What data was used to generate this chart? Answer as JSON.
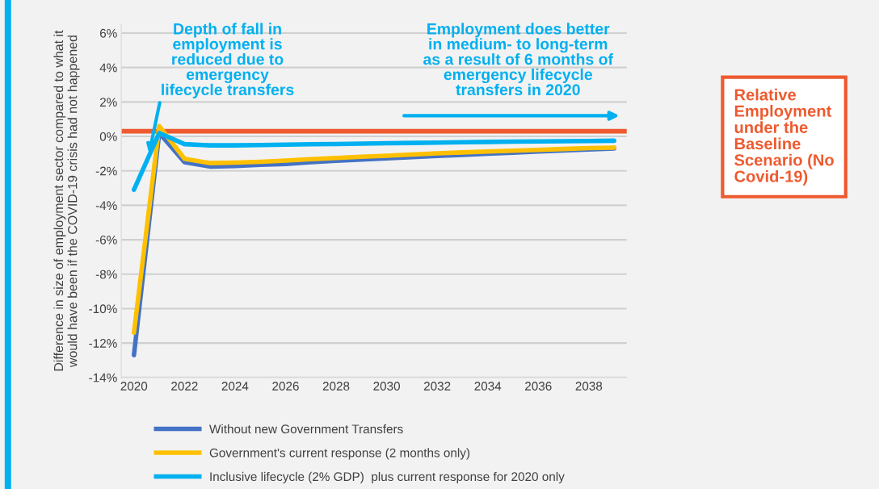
{
  "chart_data": {
    "type": "line",
    "ylabel": "Difference in size of employment sector compared to what it\nwould have been if the COVID-19 crisis had not happened",
    "x": [
      2020,
      2021,
      2022,
      2023,
      2024,
      2025,
      2026,
      2027,
      2028,
      2029,
      2030,
      2031,
      2032,
      2033,
      2034,
      2035,
      2036,
      2037,
      2038,
      2039
    ],
    "series": [
      {
        "name": "Without new Government Transfers",
        "color": "#4472c4",
        "values": [
          -12.7,
          0.2,
          -1.5,
          -1.75,
          -1.72,
          -1.65,
          -1.6,
          -1.5,
          -1.42,
          -1.35,
          -1.27,
          -1.2,
          -1.13,
          -1.07,
          -1.0,
          -0.95,
          -0.88,
          -0.82,
          -0.76,
          -0.7
        ]
      },
      {
        "name": "Government's current response (2 months only)",
        "color": "#ffc000",
        "values": [
          -11.4,
          0.6,
          -1.3,
          -1.55,
          -1.52,
          -1.47,
          -1.4,
          -1.32,
          -1.25,
          -1.18,
          -1.12,
          -1.05,
          -0.98,
          -0.93,
          -0.88,
          -0.83,
          -0.78,
          -0.73,
          -0.68,
          -0.65
        ]
      },
      {
        "name": "Inclusive lifecycle (2% GDP)  plus current response for 2020 only",
        "color": "#00b0f0",
        "values": [
          -3.1,
          0.2,
          -0.45,
          -0.52,
          -0.52,
          -0.5,
          -0.48,
          -0.46,
          -0.44,
          -0.42,
          -0.4,
          -0.38,
          -0.36,
          -0.34,
          -0.32,
          -0.3,
          -0.29,
          -0.28,
          -0.27,
          -0.25
        ]
      }
    ],
    "xlim": [
      2019.5,
      2039.5
    ],
    "xticks": [
      2020,
      2022,
      2024,
      2026,
      2028,
      2030,
      2032,
      2034,
      2036,
      2038
    ],
    "ylim": [
      -14,
      6.5
    ],
    "yticks": [
      {
        "value": -14,
        "label": "-14%"
      },
      {
        "value": -12,
        "label": "-12%"
      },
      {
        "value": -10,
        "label": "-10%"
      },
      {
        "value": -8,
        "label": "-8%"
      },
      {
        "value": -6,
        "label": "-6%"
      },
      {
        "value": -4,
        "label": "-4%"
      },
      {
        "value": -2,
        "label": "-2%"
      },
      {
        "value": 0,
        "label": "0%"
      },
      {
        "value": 2,
        "label": "2%"
      },
      {
        "value": 4,
        "label": "4%"
      },
      {
        "value": 6,
        "label": "6%"
      }
    ],
    "ref_lines": [
      {
        "axis": "y",
        "value": 0.3,
        "label": "Relative\nEmployment\nunder the\nBaseline\nScenario (No\nCovid-19)",
        "color": "#ee5a2f"
      }
    ],
    "annotations": [
      {
        "text": "Depth of fall in\nemployment is\nreduced due to\nemergency\nlifecycle transfers",
        "x": 2020.6,
        "y": -1
      },
      "Employment does better\nin medium- to long-term\nas a result of 6 months of\nemergency lifecycle\ntransfers in 2020"
    ],
    "grid": "y",
    "legend": "bottom",
    "marker": "none",
    "line_style": "solid"
  }
}
